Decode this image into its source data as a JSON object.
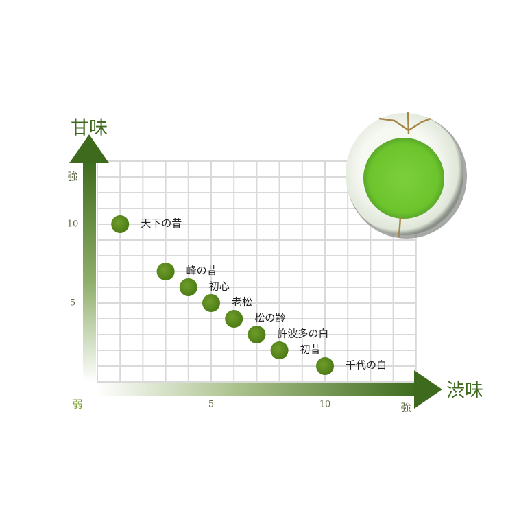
{
  "colors": {
    "axis_dark": "#3d6a1c",
    "point": "#5a8a1e",
    "grid": "#d8d8d8",
    "weak_label": "#7aa030"
  },
  "chart_data": {
    "type": "scatter",
    "title": "",
    "xlabel": "渋味",
    "ylabel": "甘味",
    "xlim": [
      0,
      14
    ],
    "ylim": [
      0,
      14
    ],
    "grid": true,
    "x_ticks": [
      {
        "value": 5,
        "label": "5"
      },
      {
        "value": 10,
        "label": "10"
      }
    ],
    "y_ticks": [
      {
        "value": 5,
        "label": "5"
      },
      {
        "value": 10,
        "label": "10"
      }
    ],
    "x_end_labels": {
      "low": "弱",
      "high": "強"
    },
    "y_end_labels": {
      "high": "強"
    },
    "points": [
      {
        "label": "天下の昔",
        "x": 1,
        "y": 10
      },
      {
        "label": "峰の昔",
        "x": 3,
        "y": 7
      },
      {
        "label": "初心",
        "x": 4,
        "y": 6
      },
      {
        "label": "老松",
        "x": 5,
        "y": 5
      },
      {
        "label": "松の齢",
        "x": 6,
        "y": 4
      },
      {
        "label": "許波多の白",
        "x": 7,
        "y": 3
      },
      {
        "label": "初昔",
        "x": 8,
        "y": 2
      },
      {
        "label": "千代の白",
        "x": 10,
        "y": 1
      }
    ]
  },
  "image": {
    "name": "matcha-bowl"
  }
}
